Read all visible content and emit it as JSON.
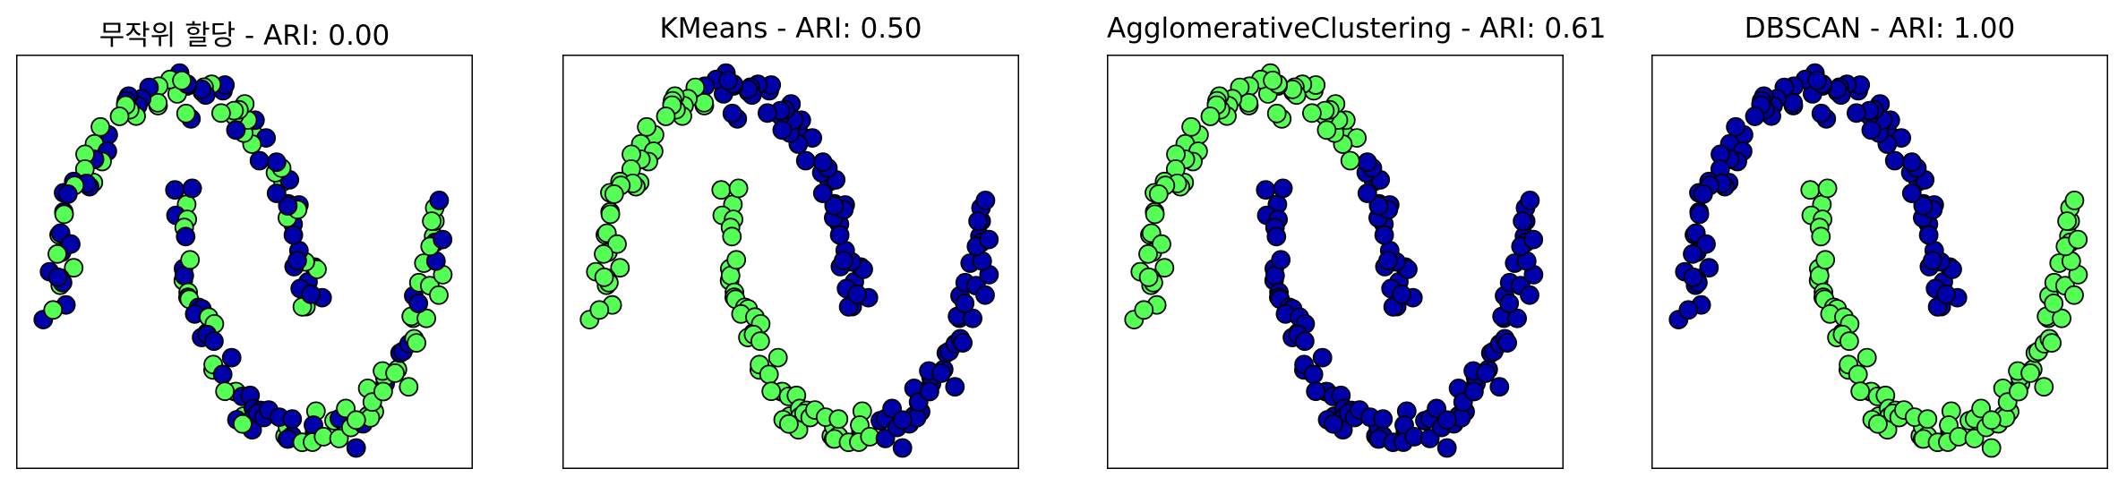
{
  "colors": {
    "cluster_0": "#0000aa",
    "cluster_1": "#55ff55",
    "edge": "#000000"
  },
  "chart_data": [
    {
      "type": "scatter",
      "title": "무작위 할당 - ARI: 0.00",
      "xlim": [
        -1.3,
        2.3
      ],
      "ylim": [
        -0.65,
        1.15
      ],
      "ticks": "none",
      "grid": false,
      "labeling": "random"
    },
    {
      "type": "scatter",
      "title": "KMeans - ARI: 0.50",
      "xlim": [
        -1.3,
        2.3
      ],
      "ylim": [
        -0.65,
        1.15
      ],
      "ticks": "none",
      "grid": false,
      "labeling": "kmeans"
    },
    {
      "type": "scatter",
      "title": "AgglomerativeClustering - ARI: 0.61",
      "xlim": [
        -1.3,
        2.3
      ],
      "ylim": [
        -0.65,
        1.15
      ],
      "ticks": "none",
      "grid": false,
      "labeling": "agglomerative"
    },
    {
      "type": "scatter",
      "title": "DBSCAN - ARI: 1.00",
      "xlim": [
        -1.3,
        2.3
      ],
      "ylim": [
        -0.65,
        1.15
      ],
      "ticks": "none",
      "grid": false,
      "labeling": "moon"
    }
  ]
}
